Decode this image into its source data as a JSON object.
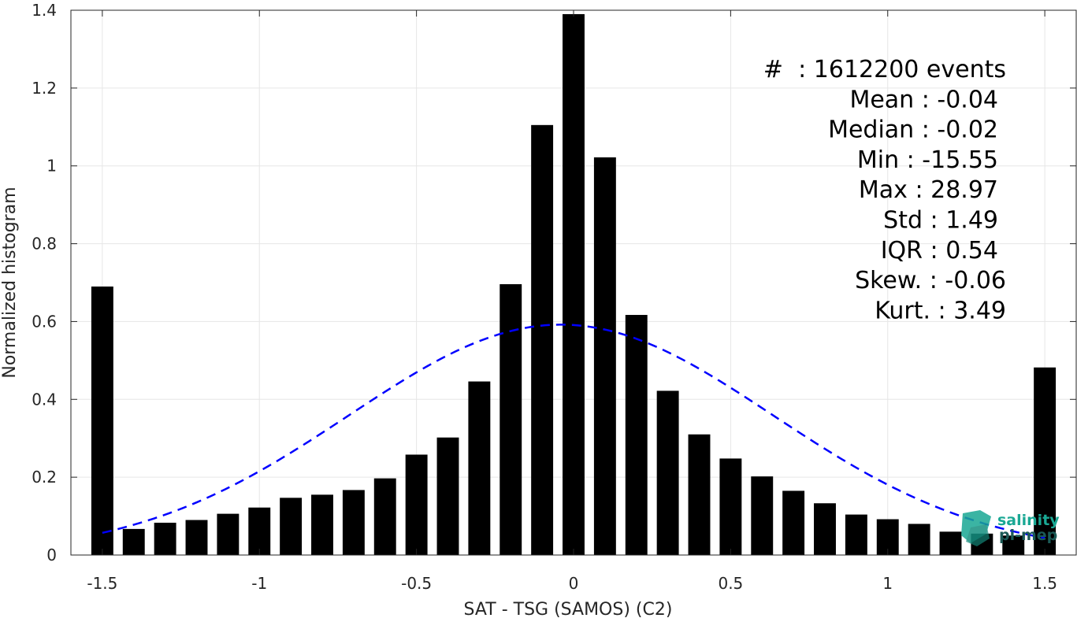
{
  "chart_data": {
    "type": "bar",
    "xlabel": "SAT - TSG (SAMOS) (C2)",
    "ylabel": "Normalized histogram",
    "xlim": [
      -1.6,
      1.6
    ],
    "ylim": [
      0,
      1.4
    ],
    "xticks": [
      -1.5,
      -1,
      -0.5,
      0,
      0.5,
      1,
      1.5
    ],
    "xtick_labels": [
      "-1.5",
      "-1",
      "-0.5",
      "0",
      "0.5",
      "1",
      "1.5"
    ],
    "yticks": [
      0,
      0.2,
      0.4,
      0.6,
      0.8,
      1,
      1.2,
      1.4
    ],
    "ytick_labels": [
      "0",
      "0.2",
      "0.4",
      "0.6",
      "0.8",
      "1",
      "1.2",
      "1.4"
    ],
    "grid": true,
    "bar_width": 0.07,
    "bar_color": "#000000",
    "bins": [
      -1.5,
      -1.4,
      -1.3,
      -1.2,
      -1.1,
      -1.0,
      -0.9,
      -0.8,
      -0.7,
      -0.6,
      -0.5,
      -0.4,
      -0.3,
      -0.2,
      -0.1,
      0.0,
      0.1,
      0.2,
      0.3,
      0.4,
      0.5,
      0.6,
      0.7,
      0.8,
      0.9,
      1.0,
      1.1,
      1.2,
      1.3,
      1.4,
      1.5
    ],
    "values": [
      0.69,
      0.067,
      0.083,
      0.09,
      0.106,
      0.122,
      0.147,
      0.155,
      0.167,
      0.197,
      0.258,
      0.302,
      0.446,
      0.696,
      1.105,
      1.39,
      1.022,
      0.617,
      0.422,
      0.31,
      0.248,
      0.202,
      0.165,
      0.133,
      0.104,
      0.092,
      0.08,
      0.06,
      0.055,
      0.05,
      0.482
    ],
    "fit_curve": {
      "style": "dashed",
      "color": "#0000ff",
      "mean": -0.04,
      "std": 0.675,
      "peak": 0.592
    },
    "stats": [
      "#  : 1612200 events",
      "Mean : -0.04",
      "Median : -0.02",
      "Min : -15.55",
      "Max : 28.97",
      "Std : 1.49",
      "IQR : 0.54",
      "Skew. : -0.06",
      "Kurt. : 3.49"
    ]
  },
  "logo": {
    "line1": "salinity",
    "line2": "pi-mep",
    "color_teal": "#1aa894",
    "color_dark": "#1b5a56"
  }
}
